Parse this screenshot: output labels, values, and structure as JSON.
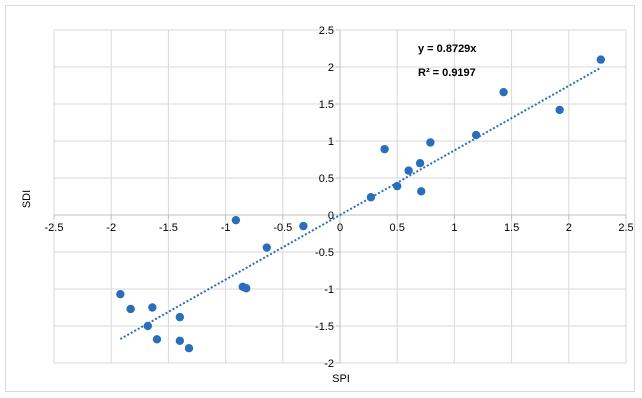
{
  "chart_data": {
    "type": "scatter",
    "xlabel": "SPI",
    "ylabel": "SDI",
    "xlim": [
      -2.5,
      2.5
    ],
    "ylim": [
      -2,
      2.5
    ],
    "x_ticks": [
      "-2.5",
      "-2",
      "-1.5",
      "-1",
      "-0.5",
      "0",
      "0.5",
      "1",
      "1.5",
      "2",
      "2.5"
    ],
    "y_ticks": [
      "-2",
      "-1.5",
      "-1",
      "-0.5",
      "0",
      "0.5",
      "1",
      "1.5",
      "2",
      "2.5"
    ],
    "grid": true,
    "marker_color": "#2a6ebb",
    "trendline_color": "#2a6ebb",
    "trendline": {
      "equation": "y = 0.8729x",
      "r_squared": "R² = 0.9197",
      "slope": 0.8729,
      "x_range": [
        -1.92,
        2.27
      ]
    },
    "points": [
      {
        "x": -1.92,
        "y": -1.07
      },
      {
        "x": -1.83,
        "y": -1.27
      },
      {
        "x": -1.68,
        "y": -1.5
      },
      {
        "x": -1.64,
        "y": -1.25
      },
      {
        "x": -1.6,
        "y": -1.68
      },
      {
        "x": -1.4,
        "y": -1.38
      },
      {
        "x": -1.4,
        "y": -1.7
      },
      {
        "x": -1.32,
        "y": -1.8
      },
      {
        "x": -0.91,
        "y": -0.07
      },
      {
        "x": -0.85,
        "y": -0.97
      },
      {
        "x": -0.82,
        "y": -0.99
      },
      {
        "x": -0.64,
        "y": -0.44
      },
      {
        "x": -0.32,
        "y": -0.15
      },
      {
        "x": 0.27,
        "y": 0.24
      },
      {
        "x": 0.39,
        "y": 0.89
      },
      {
        "x": 0.5,
        "y": 0.39
      },
      {
        "x": 0.6,
        "y": 0.6
      },
      {
        "x": 0.7,
        "y": 0.7
      },
      {
        "x": 0.71,
        "y": 0.32
      },
      {
        "x": 0.79,
        "y": 0.98
      },
      {
        "x": 1.19,
        "y": 1.08
      },
      {
        "x": 1.43,
        "y": 1.66
      },
      {
        "x": 1.92,
        "y": 1.42
      },
      {
        "x": 2.28,
        "y": 2.1
      }
    ]
  }
}
